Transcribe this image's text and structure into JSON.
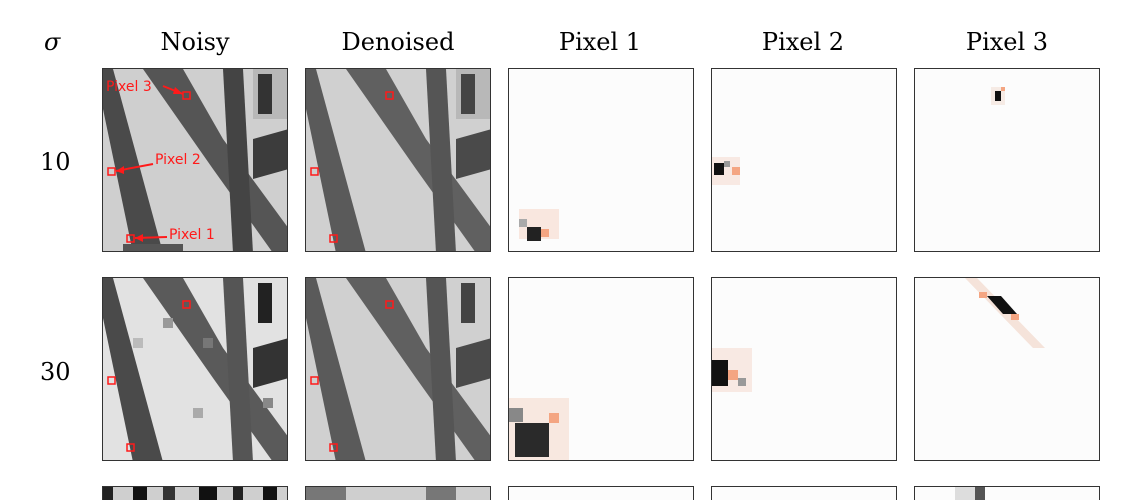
{
  "header": {
    "sigma_symbol": "σ",
    "columns": [
      "Noisy",
      "Denoised",
      "Pixel 1",
      "Pixel 2",
      "Pixel 3"
    ]
  },
  "rows": [
    {
      "sigma": "10"
    },
    {
      "sigma": "30"
    },
    {
      "sigma": ""
    }
  ],
  "annotations": {
    "pixel1": "Pixel 1",
    "pixel2": "Pixel 2",
    "pixel3": "Pixel 3"
  },
  "colors": {
    "marker": "#ff1a1a",
    "positive_weight": "#f4a582",
    "negative_weight": "#000000"
  }
}
